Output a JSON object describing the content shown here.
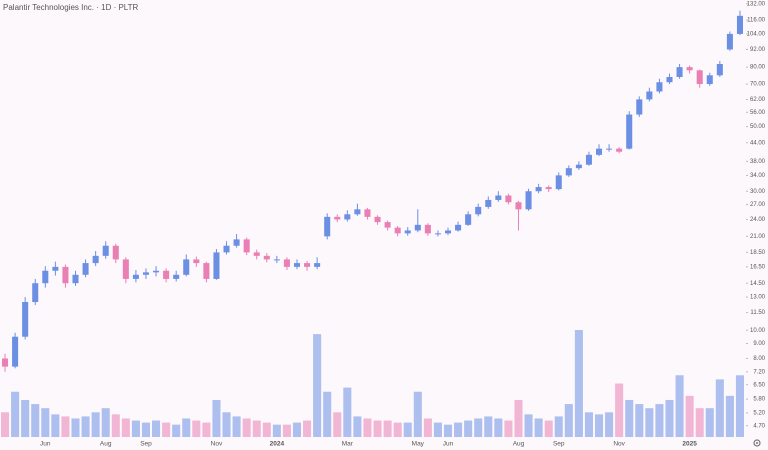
{
  "chart_data": {
    "type": "candlestick",
    "title": "Palantir Technologies Inc. · 1D · PLTR",
    "log_scale": true,
    "up_color": "#6b8fe3",
    "down_color": "#ea7fb4",
    "categories": [
      null,
      null,
      null,
      null,
      "Jun",
      null,
      null,
      null,
      null,
      null,
      "Aug",
      null,
      null,
      null,
      "Sep",
      null,
      null,
      null,
      null,
      null,
      null,
      "Nov",
      null,
      null,
      null,
      null,
      null,
      "2024",
      null,
      null,
      null,
      null,
      null,
      null,
      "Mar",
      null,
      null,
      null,
      null,
      null,
      null,
      "May",
      null,
      null,
      "Jun",
      null,
      null,
      null,
      null,
      null,
      null,
      "Aug",
      null,
      null,
      null,
      "Sep",
      null,
      null,
      null,
      null,
      null,
      "Nov",
      null,
      null,
      null,
      null,
      null,
      null,
      "2025",
      null,
      null,
      null,
      null,
      null
    ],
    "open": [
      8,
      7.5,
      9.5,
      12.5,
      14.5,
      16,
      16.5,
      14.5,
      15.5,
      17,
      18,
      19.5,
      17.5,
      15,
      15.5,
      15.8,
      16,
      15,
      15.5,
      17.5,
      17,
      15,
      18.5,
      19.5,
      20.5,
      18.5,
      18,
      17.5,
      17.5,
      16.5,
      17,
      16.5,
      21,
      24.5,
      24,
      25,
      26,
      24.5,
      23.5,
      22.5,
      21.5,
      22,
      23,
      21.5,
      21.5,
      22,
      23,
      25,
      26.5,
      28,
      29,
      27.5,
      26,
      30,
      31,
      30.5,
      34,
      36,
      37,
      40,
      42,
      42,
      42,
      55,
      62,
      66,
      71,
      74,
      80,
      78,
      70,
      75,
      92,
      104
    ],
    "high": [
      8.3,
      9.8,
      13,
      15,
      16.6,
      17.2,
      16.8,
      16,
      17.5,
      18.7,
      20.2,
      19.8,
      17.8,
      16.1,
      16.3,
      16.6,
      16.3,
      16,
      18.2,
      17.9,
      17.2,
      19,
      20.2,
      21.4,
      20.8,
      18.9,
      18.4,
      18,
      17.8,
      17.5,
      17.3,
      17.8,
      25.2,
      25,
      25.8,
      27.2,
      26.3,
      24.8,
      23.8,
      22.8,
      22.6,
      26,
      23.3,
      22,
      22.5,
      23.6,
      25.6,
      27.2,
      28.8,
      30,
      29.4,
      27.8,
      30.6,
      31.8,
      31.4,
      34.8,
      36.8,
      38,
      41,
      43.5,
      43.5,
      42.5,
      56.5,
      63.5,
      68,
      73,
      76,
      82,
      81,
      78.5,
      76.5,
      84,
      106,
      125
    ],
    "low": [
      7.2,
      7.4,
      9.3,
      12.2,
      14,
      15.4,
      14,
      14.2,
      15.2,
      16.6,
      17.6,
      17,
      14.5,
      14.6,
      15,
      15.3,
      14.6,
      14.7,
      15.3,
      16.5,
      14.6,
      14.9,
      18.2,
      19.2,
      18.1,
      17.5,
      17.1,
      17,
      16.1,
      16.2,
      16,
      16.2,
      20.5,
      23.5,
      23.6,
      24.7,
      24,
      23,
      22,
      21,
      21.1,
      21.7,
      21.1,
      21,
      21.2,
      21.8,
      22.8,
      24.6,
      26.1,
      27.6,
      27,
      22,
      25.7,
      29.5,
      29.8,
      30.2,
      33.6,
      35.5,
      36.7,
      39.6,
      41,
      40.5,
      41.7,
      54,
      61,
      65,
      70,
      73,
      76,
      68,
      69,
      74,
      91,
      103
    ],
    "close": [
      7.5,
      9.5,
      12.5,
      14.5,
      16,
      16.5,
      14.5,
      15.5,
      17,
      18,
      19.5,
      17.5,
      15,
      15.5,
      15.8,
      16,
      15,
      15.5,
      17.5,
      17,
      15,
      18.5,
      19.5,
      20.5,
      18.5,
      18,
      17.5,
      17.5,
      16.5,
      17,
      16.5,
      17,
      24.5,
      24,
      25,
      26,
      24.5,
      23.5,
      22.5,
      21.5,
      22,
      23,
      21.5,
      21.5,
      22,
      23,
      25,
      26.5,
      28,
      29,
      27.5,
      26,
      30,
      31,
      30.5,
      34,
      36,
      37,
      40,
      42,
      42,
      41,
      55,
      62,
      66,
      71,
      74,
      80,
      78,
      70,
      75,
      82,
      104,
      120
    ],
    "volume": [
      60,
      110,
      90,
      80,
      70,
      55,
      50,
      45,
      50,
      60,
      70,
      55,
      45,
      40,
      35,
      40,
      35,
      30,
      45,
      40,
      35,
      90,
      60,
      50,
      45,
      40,
      35,
      30,
      30,
      35,
      40,
      250,
      110,
      60,
      120,
      50,
      45,
      40,
      40,
      35,
      35,
      110,
      45,
      35,
      30,
      35,
      40,
      45,
      50,
      45,
      40,
      90,
      55,
      45,
      40,
      50,
      80,
      260,
      60,
      55,
      60,
      130,
      90,
      80,
      70,
      80,
      90,
      150,
      100,
      70,
      70,
      140,
      100,
      150
    ],
    "ylim": [
      4.3,
      136
    ],
    "yticks": [
      {
        "value": 4.7,
        "label": "4.70"
      },
      {
        "value": 5.2,
        "label": "5.20"
      },
      {
        "value": 5.8,
        "label": "5.80"
      },
      {
        "value": 6.5,
        "label": "6.50"
      },
      {
        "value": 7.2,
        "label": "7.20"
      },
      {
        "value": 8,
        "label": "8.00"
      },
      {
        "value": 9,
        "label": "9.00"
      },
      {
        "value": 10,
        "label": "10.00"
      },
      {
        "value": 11.5,
        "label": "11.50"
      },
      {
        "value": 13,
        "label": "13.00"
      },
      {
        "value": 14.5,
        "label": "14.50"
      },
      {
        "value": 16.5,
        "label": "16.50"
      },
      {
        "value": 18.5,
        "label": "18.50"
      },
      {
        "value": 21,
        "label": "21.00"
      },
      {
        "value": 24,
        "label": "24.00"
      },
      {
        "value": 27,
        "label": "27.00"
      },
      {
        "value": 30,
        "label": "30.00"
      },
      {
        "value": 34,
        "label": "34.00"
      },
      {
        "value": 38,
        "label": "38.00"
      },
      {
        "value": 44,
        "label": "44.00"
      },
      {
        "value": 50,
        "label": "50.00"
      },
      {
        "value": 56,
        "label": "56.00"
      },
      {
        "value": 62,
        "label": "62.00"
      },
      {
        "value": 70,
        "label": "70.00"
      },
      {
        "value": 80,
        "label": "80.00"
      },
      {
        "value": 92,
        "label": "92.00"
      },
      {
        "value": 104,
        "label": "104.00"
      },
      {
        "value": 116,
        "label": "116.00"
      },
      {
        "value": 132,
        "label": "132.00"
      }
    ]
  }
}
